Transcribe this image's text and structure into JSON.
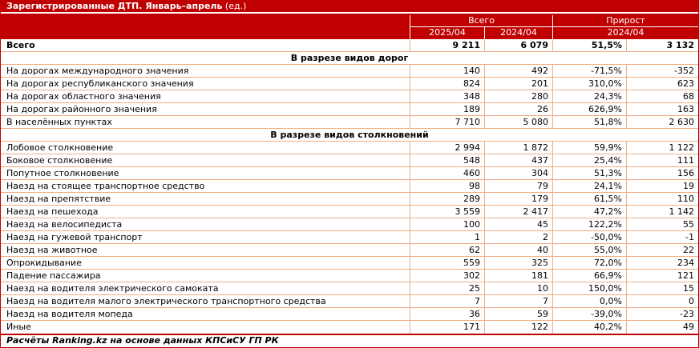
{
  "title": {
    "main": "Зарегистрированные ДТП. Январь–апрель",
    "unit": " (ед.)"
  },
  "colors": {
    "accent_red": "#C00000",
    "row_border_orange": "#F2AE80",
    "header_text": "#FFFFFF",
    "body_text": "#000000"
  },
  "header": {
    "group_total": "Всего",
    "group_growth": "Прирост",
    "sub_2025": "2025/04",
    "sub_2024": "2024/04",
    "sub_growth_2024": "2024/04"
  },
  "footer": "Расчёты Ranking.kz на основе данных КПСиСУ ГП РК",
  "chart_data": {
    "type": "table",
    "title": "Зарегистрированные ДТП. Январь–апрель (ед.)",
    "column_groups": [
      {
        "label": "Всего",
        "span": 2
      },
      {
        "label": "Прирост",
        "span": 2
      }
    ],
    "columns": [
      "Всего 2025/04",
      "Всего 2024/04",
      "Прирост 2024/04 (%)",
      "Прирост 2024/04 (ед.)"
    ],
    "rows": [
      {
        "kind": "total",
        "label": "Всего",
        "values": [
          "9 211",
          "6 079",
          "51,5%",
          "3 132"
        ]
      },
      {
        "kind": "section",
        "label": "В разрезе видов дорог"
      },
      {
        "kind": "data",
        "label": "На дорогах международного значения",
        "values": [
          "140",
          "492",
          "-71,5%",
          "-352"
        ]
      },
      {
        "kind": "data",
        "label": "На дорогах республиканского значения",
        "values": [
          "824",
          "201",
          "310,0%",
          "623"
        ]
      },
      {
        "kind": "data",
        "label": "На дорогах областного значения",
        "values": [
          "348",
          "280",
          "24,3%",
          "68"
        ]
      },
      {
        "kind": "data",
        "label": "На дорогах районного значения",
        "values": [
          "189",
          "26",
          "626,9%",
          "163"
        ]
      },
      {
        "kind": "data",
        "label": "В населённых пунктах",
        "values": [
          "7 710",
          "5 080",
          "51,8%",
          "2 630"
        ]
      },
      {
        "kind": "section",
        "label": "В разрезе видов столкновений"
      },
      {
        "kind": "data",
        "label": "Лобовое столкновение",
        "values": [
          "2 994",
          "1 872",
          "59,9%",
          "1 122"
        ]
      },
      {
        "kind": "data",
        "label": "Боковое столкновение",
        "values": [
          "548",
          "437",
          "25,4%",
          "111"
        ]
      },
      {
        "kind": "data",
        "label": "Попутное столкновение",
        "values": [
          "460",
          "304",
          "51,3%",
          "156"
        ]
      },
      {
        "kind": "data",
        "label": "Наезд на стоящее транспортное средство",
        "values": [
          "98",
          "79",
          "24,1%",
          "19"
        ]
      },
      {
        "kind": "data",
        "label": "Наезд на препятствие",
        "values": [
          "289",
          "179",
          "61,5%",
          "110"
        ]
      },
      {
        "kind": "data",
        "label": "Наезд на пешехода",
        "values": [
          "3 559",
          "2 417",
          "47,2%",
          "1 142"
        ]
      },
      {
        "kind": "data",
        "label": "Наезд на велосипедиста",
        "values": [
          "100",
          "45",
          "122,2%",
          "55"
        ]
      },
      {
        "kind": "data",
        "label": "Наезд на гужевой транспорт",
        "values": [
          "1",
          "2",
          "-50,0%",
          "-1"
        ]
      },
      {
        "kind": "data",
        "label": "Наезд на животное",
        "values": [
          "62",
          "40",
          "55,0%",
          "22"
        ]
      },
      {
        "kind": "data",
        "label": "Опрокидывание",
        "values": [
          "559",
          "325",
          "72,0%",
          "234"
        ]
      },
      {
        "kind": "data",
        "label": "Падение пассажира",
        "values": [
          "302",
          "181",
          "66,9%",
          "121"
        ]
      },
      {
        "kind": "data",
        "label": "Наезд на водителя электрического самоката",
        "values": [
          "25",
          "10",
          "150,0%",
          "15"
        ]
      },
      {
        "kind": "data",
        "label": "Наезд на водителя малого электрического транспортного средства",
        "values": [
          "7",
          "7",
          "0,0%",
          "0"
        ]
      },
      {
        "kind": "data",
        "label": "Наезд на водителя мопеда",
        "values": [
          "36",
          "59",
          "-39,0%",
          "-23"
        ]
      },
      {
        "kind": "data",
        "label": "Иные",
        "values": [
          "171",
          "122",
          "40,2%",
          "49"
        ]
      }
    ]
  }
}
